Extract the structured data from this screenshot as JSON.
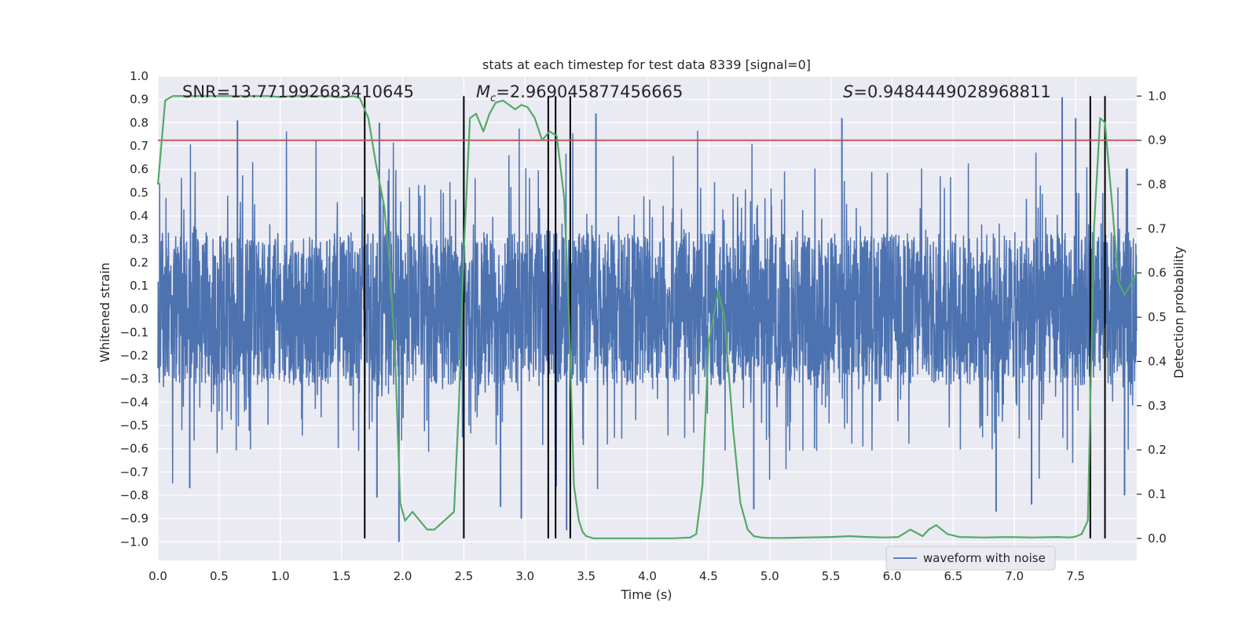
{
  "chart_data": {
    "type": "line",
    "title": "stats at each timestep for test data 8339 [signal=0]",
    "xlabel": "Time (s)",
    "ylabel_left": "Whitened strain",
    "ylabel_right": "Detection probability",
    "xlim": [
      0.0,
      8.0
    ],
    "ylim_left": [
      -1.08,
      1.0
    ],
    "ylim_right": [
      -0.05,
      1.045
    ],
    "x_ticks": [
      0.0,
      0.5,
      1.0,
      1.5,
      2.0,
      2.5,
      3.0,
      3.5,
      4.0,
      4.5,
      5.0,
      5.5,
      6.0,
      6.5,
      7.0,
      7.5
    ],
    "x_tick_labels": [
      "0.0",
      "0.5",
      "1.0",
      "1.5",
      "2.0",
      "2.5",
      "3.0",
      "3.5",
      "4.0",
      "4.5",
      "5.0",
      "5.5",
      "6.0",
      "6.5",
      "7.0",
      "7.5"
    ],
    "y_left_ticks": [
      -1.0,
      -0.9,
      -0.8,
      -0.7,
      -0.6,
      -0.5,
      -0.4,
      -0.3,
      -0.2,
      -0.1,
      0.0,
      0.1,
      0.2,
      0.3,
      0.4,
      0.5,
      0.6,
      0.7,
      0.8,
      0.9,
      1.0
    ],
    "y_left_tick_labels": [
      "−1.0",
      "−0.9",
      "−0.8",
      "−0.7",
      "−0.6",
      "−0.5",
      "−0.4",
      "−0.3",
      "−0.2",
      "−0.1",
      "0.0",
      "0.1",
      "0.2",
      "0.3",
      "0.4",
      "0.5",
      "0.6",
      "0.7",
      "0.8",
      "0.9",
      "1.0"
    ],
    "y_right_ticks": [
      0.0,
      0.1,
      0.2,
      0.3,
      0.4,
      0.5,
      0.6,
      0.7,
      0.8,
      0.9,
      1.0
    ],
    "y_right_tick_labels": [
      "0.0",
      "0.1",
      "0.2",
      "0.3",
      "0.4",
      "0.5",
      "0.6",
      "0.7",
      "0.8",
      "0.9",
      "1.0"
    ],
    "annotations": {
      "snr": "SNR=13.771992683410645",
      "mc_symbol": "M",
      "mc_subscript": "c",
      "mc_value": "=2.969045877456665",
      "s_symbol": "S",
      "s_value": "=0.9484449028968811"
    },
    "threshold": {
      "axis": "right",
      "value": 0.9,
      "color": "#c44e52"
    },
    "vertical_markers": [
      1.69,
      2.5,
      3.19,
      3.25,
      3.37,
      7.62,
      7.74
    ],
    "series": [
      {
        "name": "waveform with noise",
        "axis": "left",
        "color": "#4c72b0",
        "description": "dense whitened noise trace, core amplitude ~±0.33 with spikes up to ~±1.0",
        "core_amplitude": 0.33,
        "samples": 4000,
        "peak_points": [
          {
            "x": 0.65,
            "y": 0.81
          },
          {
            "x": 1.81,
            "y": 0.8
          },
          {
            "x": 2.5,
            "y": 0.81
          },
          {
            "x": 3.58,
            "y": 0.84
          },
          {
            "x": 5.59,
            "y": 0.82
          },
          {
            "x": 7.39,
            "y": 0.91
          },
          {
            "x": 7.5,
            "y": 0.82
          },
          {
            "x": 0.26,
            "y": -0.77
          },
          {
            "x": 1.79,
            "y": -0.81
          },
          {
            "x": 1.97,
            "y": -1.0
          },
          {
            "x": 2.8,
            "y": -0.85
          },
          {
            "x": 2.97,
            "y": -0.9
          },
          {
            "x": 3.34,
            "y": -0.95
          },
          {
            "x": 4.87,
            "y": -0.86
          },
          {
            "x": 7.14,
            "y": -0.84
          },
          {
            "x": 6.85,
            "y": -0.87
          },
          {
            "x": 7.9,
            "y": -0.8
          }
        ]
      },
      {
        "name": "detection probability",
        "axis": "right",
        "color": "#55a868",
        "x": [
          0.0,
          0.06,
          0.12,
          0.2,
          0.3,
          0.45,
          0.6,
          0.75,
          0.9,
          1.0,
          1.1,
          1.2,
          1.3,
          1.4,
          1.5,
          1.6,
          1.65,
          1.72,
          1.78,
          1.85,
          1.9,
          1.94,
          1.98,
          2.02,
          2.08,
          2.14,
          2.2,
          2.26,
          2.34,
          2.42,
          2.46,
          2.5,
          2.55,
          2.6,
          2.66,
          2.71,
          2.76,
          2.82,
          2.87,
          2.92,
          2.97,
          3.02,
          3.08,
          3.14,
          3.2,
          3.26,
          3.32,
          3.36,
          3.4,
          3.44,
          3.47,
          3.5,
          3.56,
          3.62,
          3.7,
          3.85,
          4.0,
          4.2,
          4.35,
          4.4,
          4.45,
          4.5,
          4.54,
          4.58,
          4.63,
          4.7,
          4.76,
          4.82,
          4.87,
          4.93,
          5.0,
          5.1,
          5.3,
          5.5,
          5.65,
          5.8,
          5.95,
          6.05,
          6.15,
          6.25,
          6.3,
          6.36,
          6.45,
          6.55,
          6.75,
          6.95,
          7.15,
          7.35,
          7.45,
          7.5,
          7.55,
          7.6,
          7.65,
          7.7,
          7.74,
          7.8,
          7.85,
          7.9,
          7.96,
          8.0
        ],
        "values": [
          0.8,
          0.99,
          1.0,
          1.0,
          1.0,
          1.0,
          1.0,
          1.0,
          1.0,
          0.998,
          1.0,
          1.0,
          1.0,
          1.0,
          0.997,
          1.0,
          0.995,
          0.95,
          0.85,
          0.75,
          0.6,
          0.4,
          0.08,
          0.04,
          0.06,
          0.04,
          0.02,
          0.02,
          0.04,
          0.06,
          0.3,
          0.65,
          0.95,
          0.96,
          0.92,
          0.96,
          0.985,
          0.99,
          0.98,
          0.97,
          0.98,
          0.975,
          0.95,
          0.9,
          0.92,
          0.91,
          0.77,
          0.5,
          0.12,
          0.04,
          0.015,
          0.005,
          0.0,
          0.0,
          0.0,
          0.0,
          0.0,
          0.0,
          0.002,
          0.01,
          0.12,
          0.44,
          0.5,
          0.56,
          0.5,
          0.25,
          0.08,
          0.02,
          0.005,
          0.002,
          0.001,
          0.001,
          0.002,
          0.003,
          0.005,
          0.003,
          0.002,
          0.003,
          0.02,
          0.005,
          0.02,
          0.03,
          0.01,
          0.003,
          0.002,
          0.003,
          0.002,
          0.003,
          0.002,
          0.004,
          0.01,
          0.04,
          0.7,
          0.95,
          0.94,
          0.75,
          0.58,
          0.55,
          0.58,
          0.6
        ]
      }
    ],
    "legend": {
      "entries": [
        "waveform with noise"
      ],
      "placement": "lower-right"
    }
  }
}
